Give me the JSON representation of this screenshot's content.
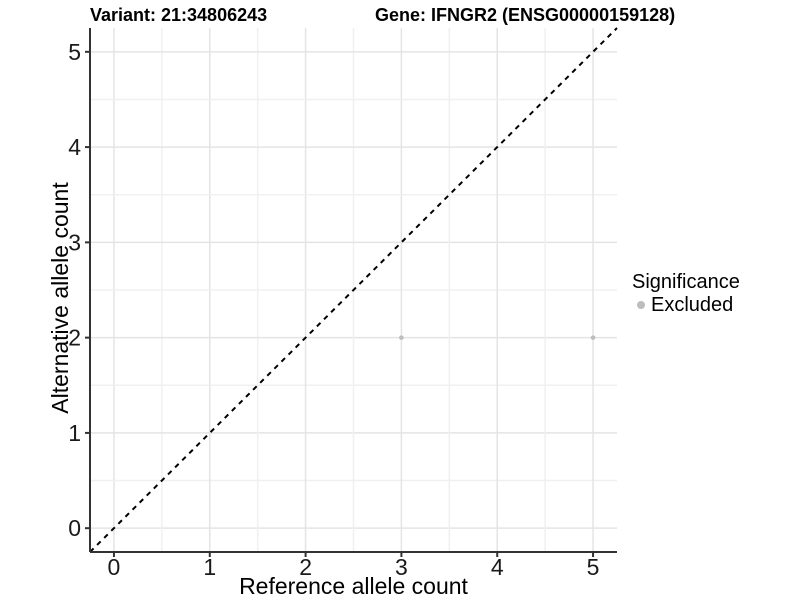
{
  "header": {
    "variant_title": "Variant: 21:34806243",
    "gene_title": "Gene: IFNGR2 (ENSG00000159128)"
  },
  "chart_data": {
    "type": "scatter",
    "xlabel": "Reference allele count",
    "ylabel": "Alternative allele count",
    "xlim": [
      -0.25,
      5.25
    ],
    "ylim": [
      -0.25,
      5.25
    ],
    "x_ticks": [
      "0",
      "1",
      "2",
      "3",
      "4",
      "5"
    ],
    "y_ticks": [
      "0",
      "1",
      "2",
      "3",
      "4",
      "5"
    ],
    "grid": {
      "major_step": 1,
      "minor_step": 0.5,
      "major_color": "#e4e4e4",
      "minor_color": "#f0f0f0"
    },
    "identity_line": {
      "slope": 1,
      "intercept": 0,
      "style": "dashed",
      "color": "#000000"
    },
    "series": [
      {
        "name": "Excluded",
        "color": "#bdbdbd",
        "points": [
          {
            "x": 3,
            "y": 2
          },
          {
            "x": 5,
            "y": 2
          }
        ]
      }
    ],
    "legend": {
      "title": "Significance",
      "position": "right",
      "items": [
        {
          "label": "Excluded",
          "color": "#bdbdbd"
        }
      ]
    }
  },
  "colors": {
    "background": "#ffffff",
    "axis": "#333333",
    "tick_text": "#1a1a1a",
    "text": "#000000"
  }
}
